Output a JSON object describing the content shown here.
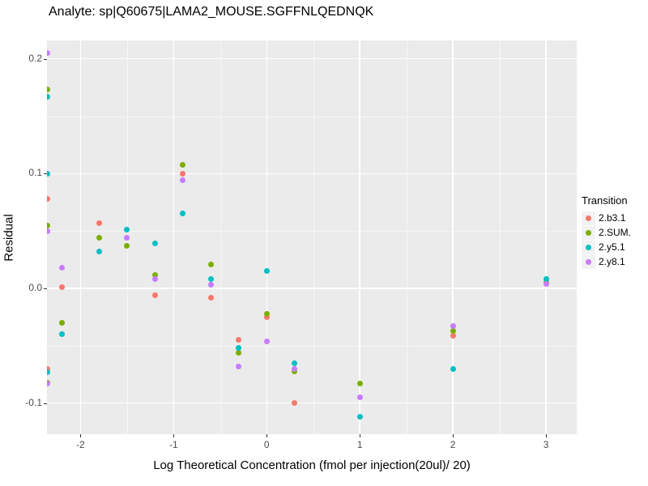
{
  "title": "Analyte: sp|Q60675|LAMA2_MOUSE.SGFFNLQEDNQK",
  "chart_data": {
    "type": "scatter",
    "title": "Analyte: sp|Q60675|LAMA2_MOUSE.SGFFNLQEDNQK",
    "xlabel": "Log Theoretical Concentration (fmol per injection(20ul)/ 20)",
    "ylabel": "Residual",
    "xlim": [
      -2.36,
      3.33
    ],
    "ylim": [
      -0.127,
      0.216
    ],
    "grid": true,
    "panel_bg": "#EBEBEB",
    "x_major_ticks": [
      -2,
      -1,
      0,
      1,
      2,
      3
    ],
    "x_tick_labels": [
      "-2",
      "-1",
      "0",
      "1",
      "2",
      "3"
    ],
    "x_minor_ticks": [
      -1.5,
      -0.5,
      0.5,
      1.5,
      2.5
    ],
    "y_major_ticks": [
      0.2,
      0.1,
      0.0,
      -0.1
    ],
    "y_tick_labels": [
      "0.2",
      "0.1",
      "0.0",
      "-0.1"
    ],
    "y_minor_ticks": [
      0.15,
      0.05,
      -0.05
    ],
    "legend_title": "Transition",
    "legend_position": "right",
    "series": [
      {
        "name": "2.b3.1",
        "color": "#F8766D",
        "points": [
          [
            -2.36,
            0.078
          ],
          [
            -2.36,
            -0.07
          ],
          [
            -2.2,
            0.001
          ],
          [
            -1.8,
            0.057
          ],
          [
            -1.2,
            -0.006
          ],
          [
            -0.9,
            0.1
          ],
          [
            -0.6,
            -0.008
          ],
          [
            -0.3,
            -0.045
          ],
          [
            0,
            -0.025
          ],
          [
            0.3,
            -0.1
          ],
          [
            2,
            -0.041
          ]
        ]
      },
      {
        "name": "2.SUM.",
        "color": "#7CAE00",
        "points": [
          [
            -2.36,
            0.173
          ],
          [
            -2.36,
            0.055
          ],
          [
            -2.36,
            -0.082
          ],
          [
            -2.2,
            -0.03
          ],
          [
            -1.8,
            0.044
          ],
          [
            -1.5,
            0.037
          ],
          [
            -1.2,
            0.012
          ],
          [
            -0.9,
            0.108
          ],
          [
            -0.6,
            0.021
          ],
          [
            -0.3,
            -0.056
          ],
          [
            0,
            -0.022
          ],
          [
            0.3,
            -0.072
          ],
          [
            1,
            -0.083
          ],
          [
            2,
            -0.037
          ],
          [
            3,
            0.005
          ]
        ]
      },
      {
        "name": "2.y5.1",
        "color": "#00BFC4",
        "points": [
          [
            -2.36,
            0.167
          ],
          [
            -2.36,
            0.1
          ],
          [
            -2.36,
            -0.073
          ],
          [
            -2.2,
            -0.04
          ],
          [
            -1.8,
            0.032
          ],
          [
            -1.5,
            0.051
          ],
          [
            -1.2,
            0.039
          ],
          [
            -0.9,
            0.065
          ],
          [
            -0.6,
            0.008
          ],
          [
            -0.3,
            -0.052
          ],
          [
            0,
            0.015
          ],
          [
            0.3,
            -0.065
          ],
          [
            1,
            -0.112
          ],
          [
            2,
            -0.07
          ],
          [
            3,
            0.008
          ]
        ]
      },
      {
        "name": "2.y8.1",
        "color": "#C77CFF",
        "points": [
          [
            -2.36,
            0.205
          ],
          [
            -2.36,
            0.05
          ],
          [
            -2.36,
            -0.083
          ],
          [
            -2.2,
            0.018
          ],
          [
            -1.5,
            0.044
          ],
          [
            -1.2,
            0.008
          ],
          [
            -0.9,
            0.094
          ],
          [
            -0.6,
            0.003
          ],
          [
            -0.3,
            -0.068
          ],
          [
            0,
            -0.046
          ],
          [
            0.3,
            -0.07
          ],
          [
            1,
            -0.095
          ],
          [
            2,
            -0.033
          ],
          [
            3,
            0.004
          ]
        ]
      }
    ]
  }
}
